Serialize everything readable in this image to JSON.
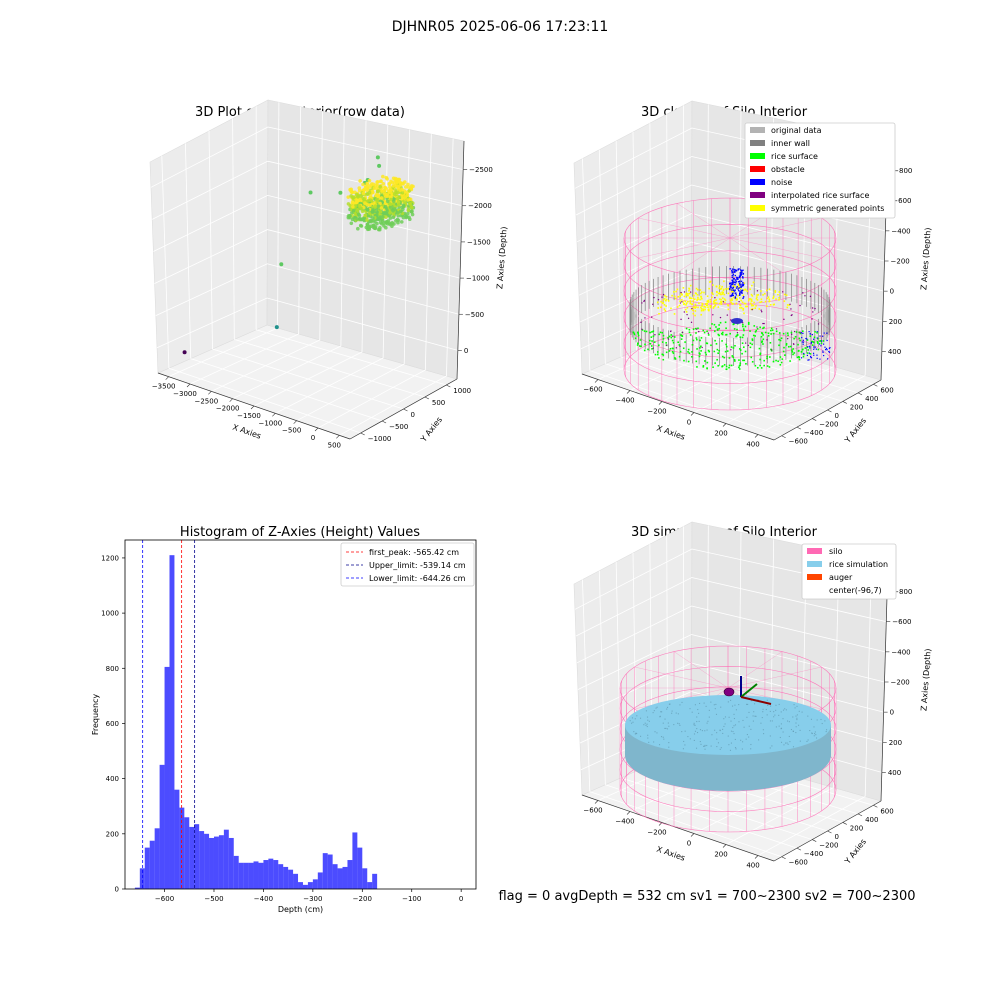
{
  "suptitle": "DJHNR05 2025-06-06 17:23:11",
  "footer": "flag = 0     avgDepth = 532 cm  sv1 = 700~2300  sv2 = 700~2300",
  "chart_data": [
    {
      "type": "scatter3d",
      "title": "3D Plot of Silo Interior(row data)",
      "xlabel": "X Axies",
      "ylabel": "Y Axies",
      "zlabel": "Z Axies (Depth)",
      "xticks": [
        "−3500",
        "−3000",
        "−2500",
        "−2000",
        "−1500",
        "−1000",
        "−500",
        "0",
        "500"
      ],
      "yticks": [
        "−1000",
        "−500",
        "0",
        "500",
        "1000"
      ],
      "zticks": [
        "0",
        "−500",
        "−1000",
        "−1500",
        "−2000",
        "−2500"
      ],
      "xlim": [
        -3500,
        500
      ],
      "ylim": [
        -1000,
        1000
      ],
      "zlim": [
        -2700,
        100
      ],
      "colormap": "viridis",
      "outliers": [
        {
          "x": -3400,
          "y": -600,
          "z": -2550
        },
        {
          "x": -2400,
          "y": 300,
          "z": -1600
        },
        {
          "x": -1900,
          "y": 400,
          "z": -700
        },
        {
          "x": -1500,
          "y": 600,
          "z": -700
        },
        {
          "x": -1100,
          "y": 700,
          "z": -550
        },
        {
          "x": -800,
          "y": 700,
          "z": -300
        },
        {
          "x": -600,
          "y": 500,
          "z": -100
        },
        {
          "x": -700,
          "y": 400,
          "z": -350
        },
        {
          "x": -1700,
          "y": -400,
          "z": -2000
        }
      ],
      "cluster": {
        "center": [
          -200,
          200,
          -560
        ],
        "spread_xy": 500,
        "depth_range": [
          -640,
          -300
        ]
      }
    },
    {
      "type": "scatter3d",
      "title": "3D classify of Silo Interior",
      "xlabel": "X Axies",
      "ylabel": "Y Axies",
      "zlabel": "Z Axies (Depth)",
      "xticks": [
        "−600",
        "−400",
        "−200",
        "0",
        "200",
        "400"
      ],
      "yticks": [
        "−600",
        "−400",
        "−200",
        "0",
        "200",
        "400",
        "600"
      ],
      "zticks": [
        "400",
        "200",
        "0",
        "−200",
        "−400",
        "−600",
        "−800"
      ],
      "xlim": [
        -700,
        500
      ],
      "ylim": [
        -700,
        700
      ],
      "zlim": [
        -900,
        450
      ],
      "silo": {
        "radius": 560,
        "top": 300,
        "bottom": -900
      },
      "legend": [
        {
          "label": "original data",
          "color": "#b3b3b3"
        },
        {
          "label": "inner wall",
          "color": "#808080"
        },
        {
          "label": "rice surface",
          "color": "#00ff00"
        },
        {
          "label": "obstacle",
          "color": "#ff0000"
        },
        {
          "label": "noise",
          "color": "#0000ff"
        },
        {
          "label": "interpolated rice surface",
          "color": "#800080"
        },
        {
          "label": "symmetric generated points",
          "color": "#ffff00"
        }
      ]
    },
    {
      "type": "bar",
      "title": "Histogram of Z-Axies (Height) Values",
      "xlabel": "Depth (cm)",
      "ylabel": "Frequency",
      "xlim": [
        -680,
        30
      ],
      "ylim": [
        0,
        1265
      ],
      "xticks": [
        -600,
        -500,
        -400,
        -300,
        -200,
        -100,
        0
      ],
      "xtick_labels": [
        "−600",
        "−500",
        "−400",
        "−300",
        "−200",
        "−100",
        "0"
      ],
      "yticks": [
        0,
        200,
        400,
        600,
        800,
        1000,
        1200
      ],
      "bin_start": -660,
      "bin_width": 10,
      "values": [
        5,
        75,
        150,
        175,
        220,
        450,
        805,
        1210,
        360,
        295,
        260,
        225,
        235,
        210,
        200,
        185,
        190,
        195,
        215,
        185,
        120,
        95,
        95,
        95,
        100,
        95,
        105,
        110,
        105,
        90,
        80,
        70,
        55,
        25,
        15,
        25,
        35,
        60,
        130,
        125,
        90,
        75,
        80,
        105,
        205,
        150,
        75,
        25,
        55
      ],
      "bar_color": "#0000ff",
      "vlines": [
        {
          "label": "first_peak: -565.42 cm",
          "x": -565.42,
          "color": "#ff0000"
        },
        {
          "label": "Upper_limit: -539.14 cm",
          "x": -539.14,
          "color": "#00008b"
        },
        {
          "label": "Lower_limit: -644.26 cm",
          "x": -644.26,
          "color": "#0000ff"
        }
      ]
    },
    {
      "type": "surface3d",
      "title": "3D simulation of Silo Interior",
      "xlabel": "X Axies",
      "ylabel": "Y Axies",
      "zlabel": "Z Axies (Depth)",
      "xticks": [
        "−600",
        "−400",
        "−200",
        "0",
        "200",
        "400"
      ],
      "yticks": [
        "−600",
        "−400",
        "−200",
        "0",
        "200",
        "400",
        "600"
      ],
      "zticks": [
        "400",
        "200",
        "0",
        "−200",
        "−400",
        "−600",
        "−800"
      ],
      "xlim": [
        -700,
        500
      ],
      "ylim": [
        -700,
        700
      ],
      "zlim": [
        -900,
        450
      ],
      "silo": {
        "radius": 560,
        "top": 300,
        "bottom": -900
      },
      "rice_level": -532,
      "legend": [
        {
          "label": "silo",
          "color": "#ff69b4"
        },
        {
          "label": "rice simulation",
          "color": "#87ceeb"
        },
        {
          "label": "auger",
          "color": "#ff4500"
        },
        {
          "label": "center(-96,7)",
          "color": ""
        }
      ]
    }
  ]
}
